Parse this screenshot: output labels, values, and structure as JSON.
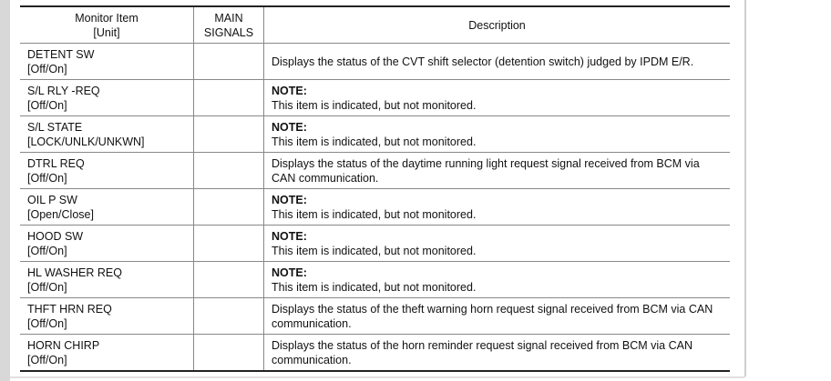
{
  "table": {
    "headers": {
      "item": "Monitor Item",
      "unit": "[Unit]",
      "main": "MAIN",
      "signals": "SIGNALS",
      "description": "Description"
    },
    "rows": [
      {
        "item": "DETENT SW",
        "unit": "[Off/On]",
        "main": "",
        "note": "",
        "description": "Displays the status of the CVT shift selector (detention switch) judged by IPDM E/R."
      },
      {
        "item": "S/L RLY -REQ",
        "unit": "[Off/On]",
        "main": "",
        "note": "NOTE:",
        "description": "This item is indicated, but not monitored."
      },
      {
        "item": "S/L STATE",
        "unit": "[LOCK/UNLK/UNKWN]",
        "main": "",
        "note": "NOTE:",
        "description": "This item is indicated, but not monitored."
      },
      {
        "item": "DTRL REQ",
        "unit": "[Off/On]",
        "main": "",
        "note": "",
        "description": "Displays the status of the daytime running light request signal received from BCM via CAN communication."
      },
      {
        "item": "OIL P SW",
        "unit": "[Open/Close]",
        "main": "",
        "note": "NOTE:",
        "description": "This item is indicated, but not monitored."
      },
      {
        "item": "HOOD SW",
        "unit": "[Off/On]",
        "main": "",
        "note": "NOTE:",
        "description": "This item is indicated, but not monitored."
      },
      {
        "item": "HL WASHER REQ",
        "unit": "[Off/On]",
        "main": "",
        "note": "NOTE:",
        "description": "This item is indicated, but not monitored."
      },
      {
        "item": "THFT HRN REQ",
        "unit": "[Off/On]",
        "main": "",
        "note": "",
        "description": "Displays the status of the theft warning horn request signal received from BCM via CAN communication."
      },
      {
        "item": "HORN CHIRP",
        "unit": "[Off/On]",
        "main": "",
        "note": "",
        "description": "Displays the status of the horn reminder request signal received from BCM via CAN communication."
      }
    ]
  }
}
